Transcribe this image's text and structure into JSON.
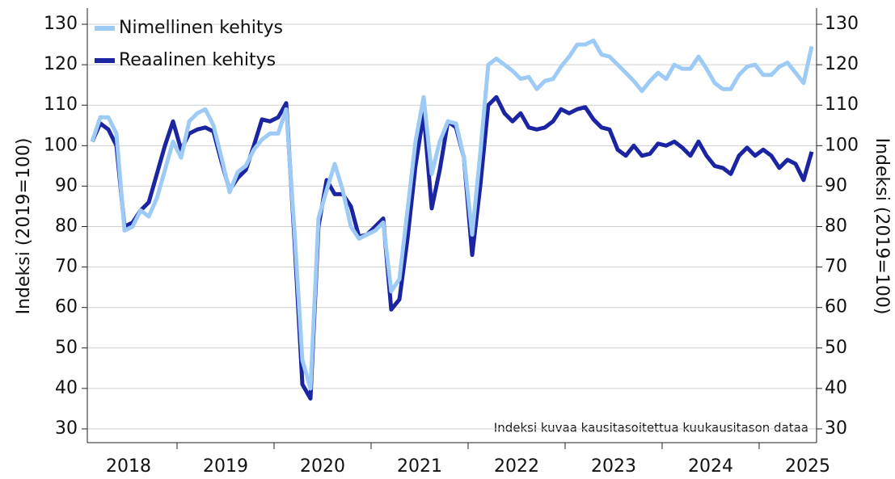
{
  "chart_data": {
    "type": "line",
    "ylabel": "Indeksi (2019=100)",
    "y2label": "Indeksi (2019=100)",
    "annotation": "Indeksi kuvaa kausitasoitettua kuukausitason dataa",
    "years": [
      2018,
      2019,
      2020,
      2021,
      2022,
      2023,
      2024,
      2025
    ],
    "x": [
      2018.125,
      2018.208,
      2018.292,
      2018.375,
      2018.458,
      2018.542,
      2018.625,
      2018.708,
      2018.792,
      2018.875,
      2018.958,
      2019.042,
      2019.125,
      2019.208,
      2019.292,
      2019.375,
      2019.458,
      2019.542,
      2019.625,
      2019.708,
      2019.792,
      2019.875,
      2019.958,
      2020.042,
      2020.125,
      2020.208,
      2020.292,
      2020.375,
      2020.458,
      2020.542,
      2020.625,
      2020.708,
      2020.792,
      2020.875,
      2020.958,
      2021.042,
      2021.125,
      2021.208,
      2021.292,
      2021.375,
      2021.458,
      2021.542,
      2021.625,
      2021.708,
      2021.792,
      2021.875,
      2021.958,
      2022.042,
      2022.125,
      2022.208,
      2022.292,
      2022.375,
      2022.458,
      2022.542,
      2022.625,
      2022.708,
      2022.792,
      2022.875,
      2022.958,
      2023.042,
      2023.125,
      2023.208,
      2023.292,
      2023.375,
      2023.458,
      2023.542,
      2023.625,
      2023.708,
      2023.792,
      2023.875,
      2023.958,
      2024.042,
      2024.125,
      2024.208,
      2024.292,
      2024.375,
      2024.458,
      2024.542,
      2024.625,
      2024.708,
      2024.792,
      2024.875,
      2024.958,
      2025.042,
      2025.125,
      2025.208,
      2025.292,
      2025.375,
      2025.458,
      2025.542
    ],
    "series": [
      {
        "name": "Nimellinen kehitys",
        "color": "#9dcbf6",
        "values": [
          101,
          107,
          107,
          103,
          79,
          80,
          84,
          82.5,
          87,
          94,
          101,
          97,
          106,
          108,
          109,
          105,
          97,
          88.5,
          93.5,
          95,
          99,
          101.5,
          103,
          103,
          109,
          80,
          47,
          40,
          82,
          89,
          95.5,
          89,
          80,
          77,
          78,
          79,
          81,
          64,
          67,
          84,
          101,
          112,
          93,
          101,
          106,
          105.5,
          97,
          78,
          98,
          120,
          121.5,
          120,
          118.5,
          116.5,
          117,
          114,
          116,
          116.5,
          119.5,
          122,
          125,
          125,
          126,
          122.5,
          122,
          120,
          118,
          116,
          113.5,
          116,
          118,
          116.5,
          120,
          119,
          119,
          122,
          119,
          115.5,
          114,
          114,
          117.5,
          119.5,
          120,
          117.5,
          117.5,
          119.5,
          120.5,
          118,
          115.5,
          124.5
        ]
      },
      {
        "name": "Reaalinen kehitys",
        "color": "#1b25a2",
        "values": [
          101,
          105.5,
          104,
          100,
          80,
          81,
          84,
          86,
          93,
          100,
          106,
          99,
          103,
          104,
          104.5,
          103.5,
          96,
          89,
          92,
          94,
          100,
          106.5,
          106,
          107,
          110.5,
          78,
          41,
          37.5,
          80,
          91.5,
          88,
          88,
          85,
          77.5,
          78,
          80,
          82,
          59.5,
          62,
          77,
          95,
          108,
          84.5,
          94,
          106,
          104.5,
          97,
          73,
          90,
          110,
          112,
          108,
          106,
          108,
          104.5,
          104,
          104.5,
          106,
          109,
          108,
          109,
          109.5,
          106.5,
          104.5,
          104,
          99,
          97.5,
          100,
          97.5,
          98,
          100.5,
          100,
          101,
          99.5,
          97.5,
          101,
          97.5,
          95,
          94.5,
          93,
          97.5,
          99.5,
          97.5,
          99,
          97.5,
          94.5,
          96.5,
          95.5,
          91.5,
          98.5
        ]
      }
    ],
    "xlim": [
      2018.075,
      2025.592
    ],
    "ylim": [
      26.6,
      134
    ],
    "yticks": [
      30,
      40,
      50,
      60,
      70,
      80,
      90,
      100,
      110,
      120,
      130
    ],
    "y2lim": [
      26.6,
      134
    ],
    "y2ticks": [
      30,
      40,
      50,
      60,
      70,
      80,
      90,
      100,
      110,
      120,
      130
    ],
    "grid": true,
    "legend": "top-left"
  }
}
